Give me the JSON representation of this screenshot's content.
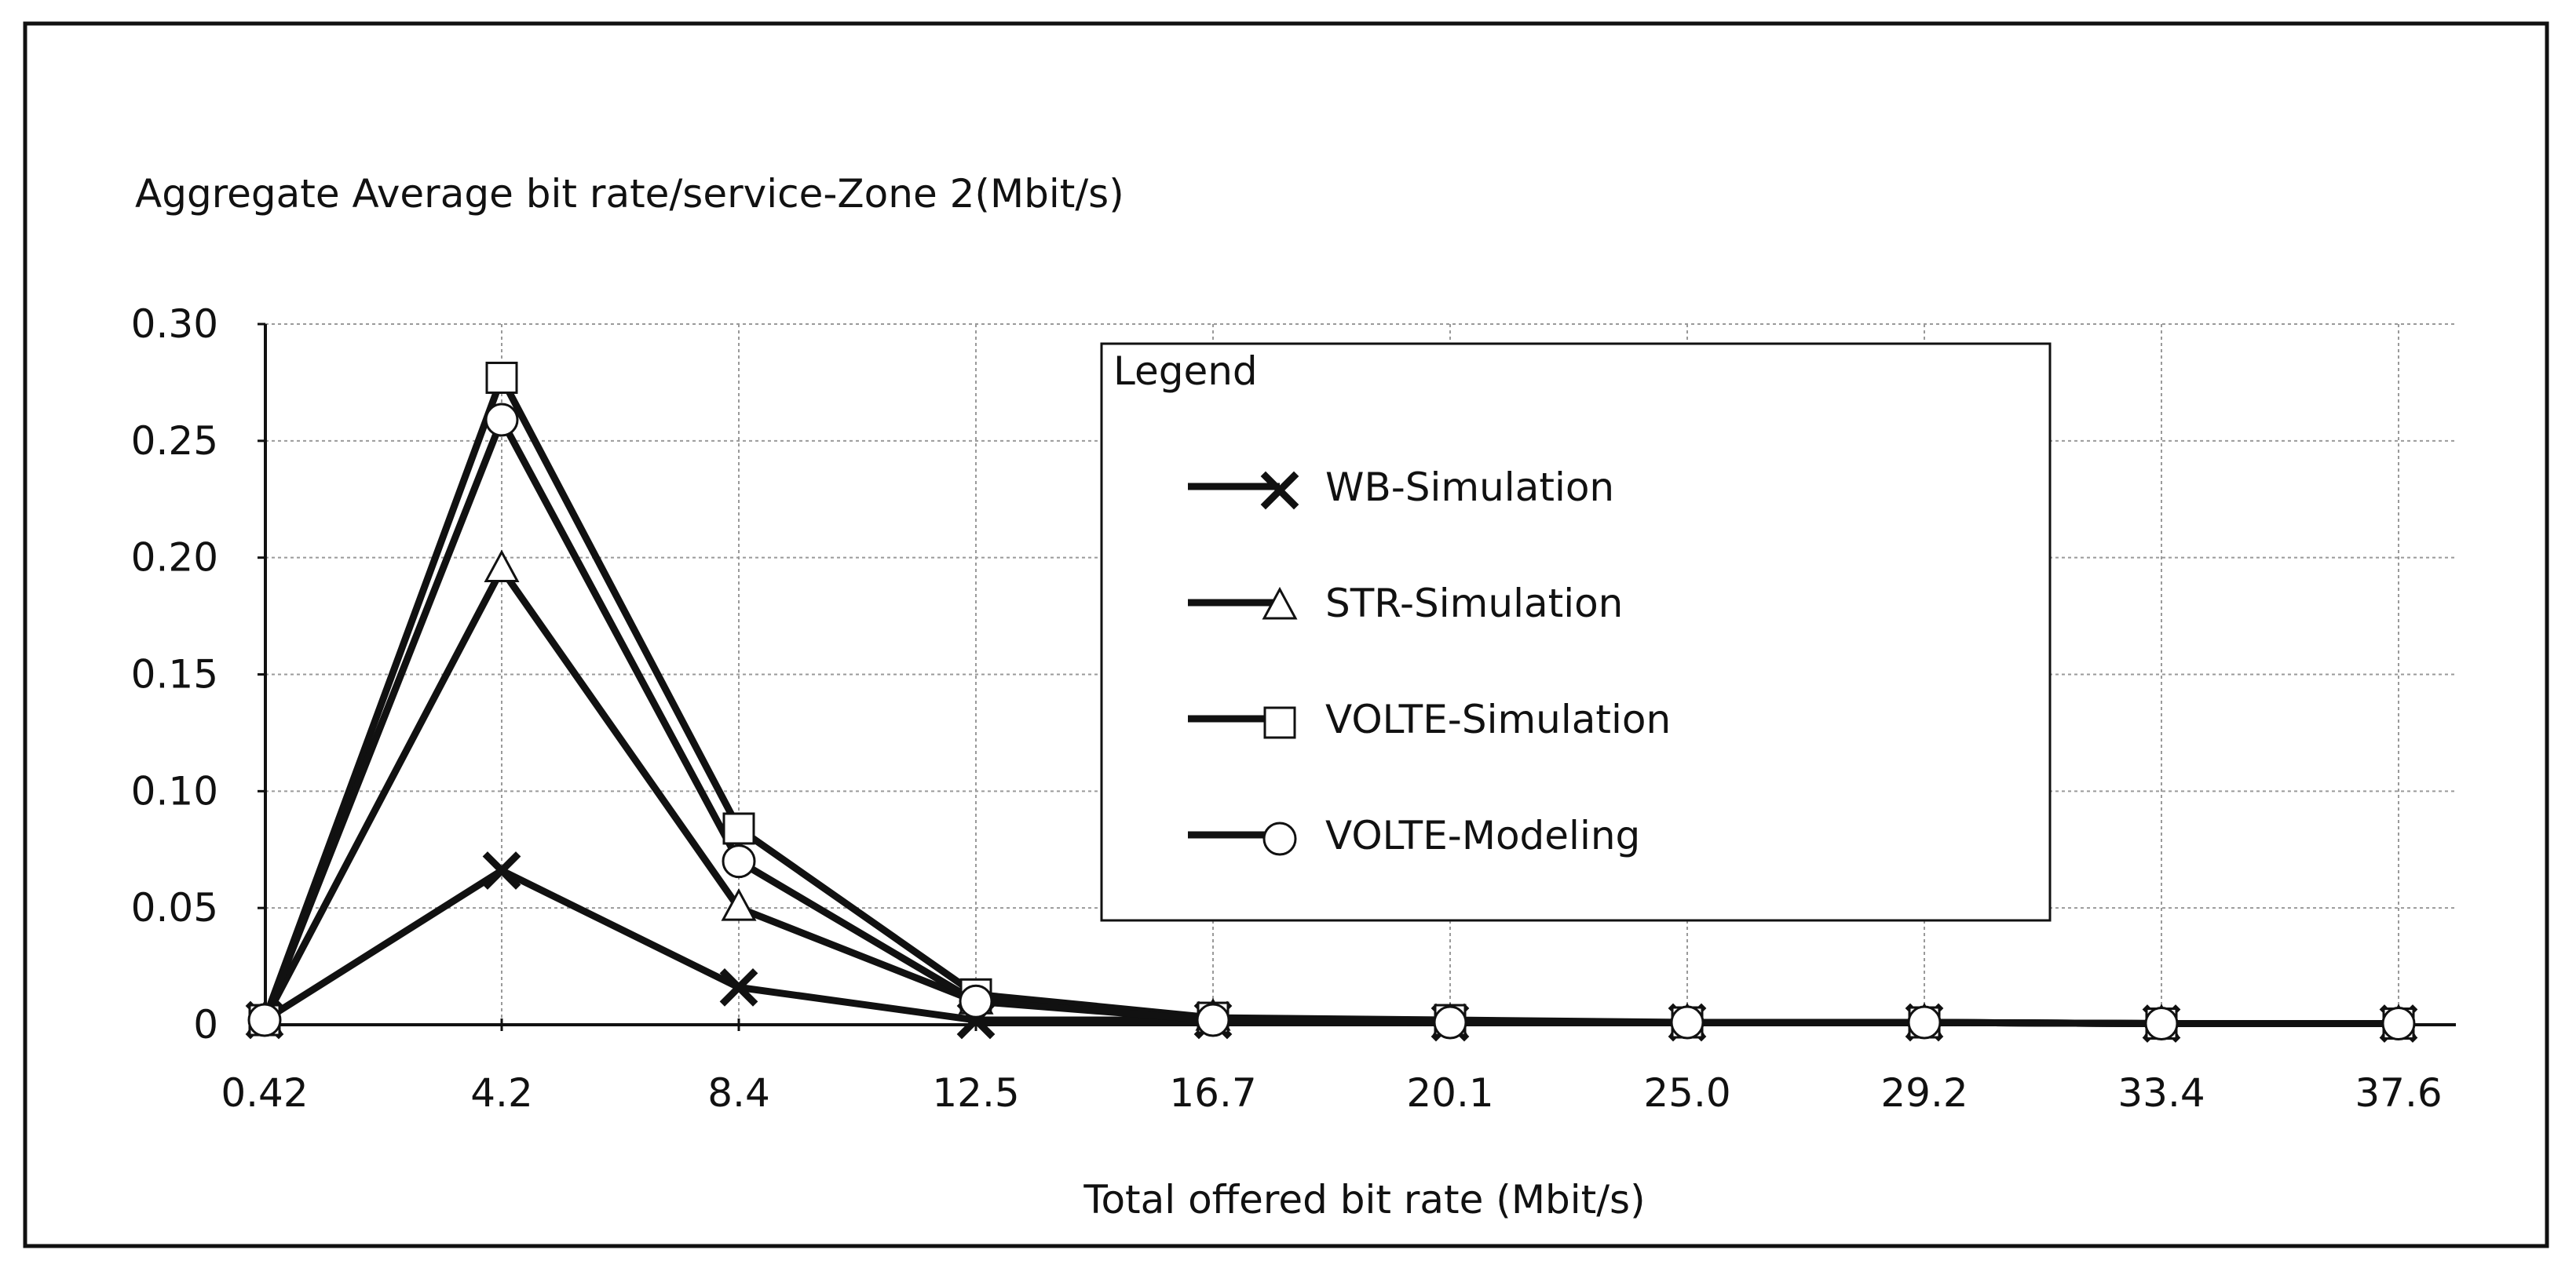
{
  "chart_data": {
    "type": "line",
    "title": "",
    "ylabel": "Aggregate Average bit rate/service-Zone 2(Mbit/s)",
    "xlabel": "Total offered bit rate (Mbit/s)",
    "categories": [
      "0.42",
      "4.2",
      "8.4",
      "12.5",
      "16.7",
      "20.1",
      "25.0",
      "29.2",
      "33.4",
      "37.6"
    ],
    "yticks": [
      "0",
      "0.05",
      "0.10",
      "0.15",
      "0.20",
      "0.25",
      "0.30"
    ],
    "yticks_values": [
      0,
      0.05,
      0.1,
      0.15,
      0.2,
      0.25,
      0.3
    ],
    "ylim": [
      0,
      0.3
    ],
    "grid": true,
    "legend": {
      "title": "Legend",
      "position": "top-right"
    },
    "series": [
      {
        "name": "WB-Simulation",
        "marker": "x",
        "values": [
          0.002,
          0.066,
          0.016,
          0.002,
          0.002,
          0.001,
          0.001,
          0.001,
          0.0005,
          0.0005
        ]
      },
      {
        "name": "STR-Simulation",
        "marker": "triangle",
        "values": [
          0.002,
          0.195,
          0.05,
          0.01,
          0.003,
          0.001,
          0.001,
          0.001,
          0.0005,
          0.0005
        ]
      },
      {
        "name": "VOLTE-Simulation",
        "marker": "square",
        "values": [
          0.002,
          0.277,
          0.084,
          0.013,
          0.003,
          0.002,
          0.001,
          0.001,
          0.0005,
          0.0005
        ]
      },
      {
        "name": "VOLTE-Modeling",
        "marker": "circle",
        "values": [
          0.002,
          0.259,
          0.07,
          0.01,
          0.002,
          0.001,
          0.001,
          0.001,
          0.0005,
          0.0005
        ]
      }
    ]
  }
}
